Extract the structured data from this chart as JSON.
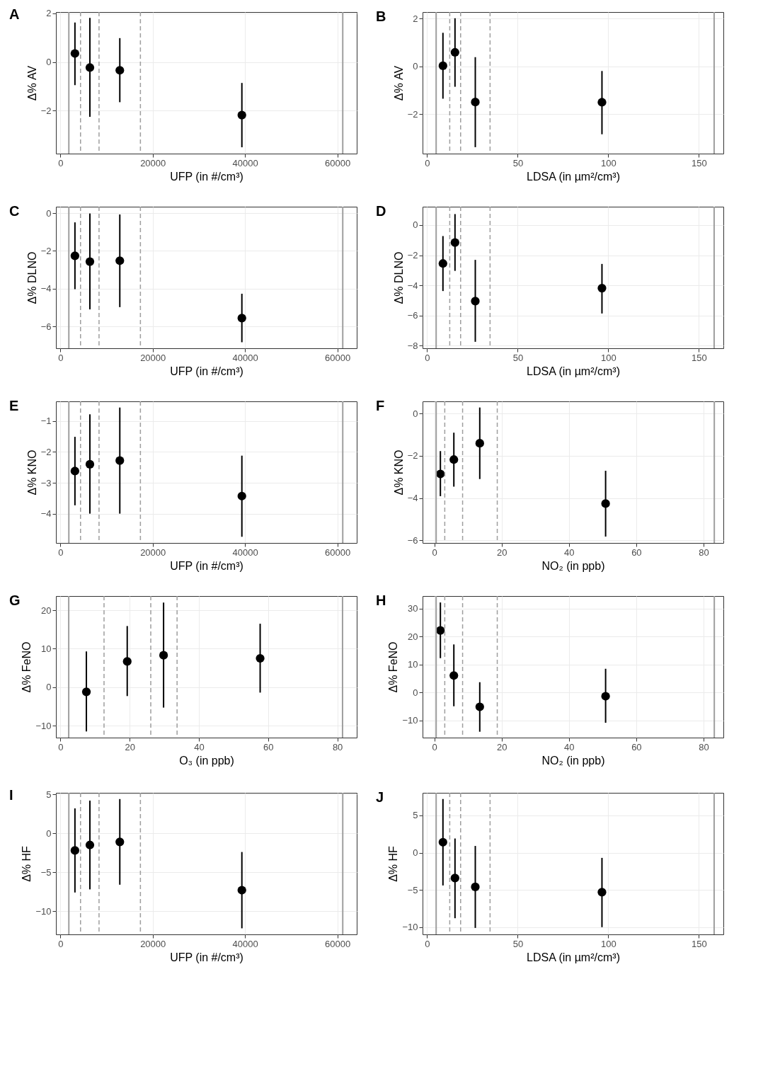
{
  "chart_data": [
    {
      "type": "scatter",
      "title": "A",
      "xlabel": "UFP (in #/cm³)",
      "ylabel": "Δ% AV",
      "x": [
        3160,
        6400,
        12880,
        39320
      ],
      "marker": "circle",
      "grid": true,
      "series": [
        {
          "color": "#000000",
          "values": [
            0.35,
            -0.23,
            -0.34,
            -2.18
          ],
          "errors": [
            [
              -0.95,
              1.62
            ],
            [
              -2.25,
              1.81
            ],
            [
              -1.65,
              0.98
            ],
            [
              -3.5,
              -0.86
            ]
          ]
        }
      ],
      "xlim": [
        -960,
        64200
      ],
      "xticks": [
        0,
        20000,
        40000,
        60000
      ],
      "ylim": [
        -3.76,
        2.05
      ],
      "yticks": [
        -2,
        0,
        2
      ],
      "ref_lines": [
        {
          "axis": "x",
          "value": 1840,
          "color": "#9e9e9e",
          "line_style": "solid"
        },
        {
          "axis": "x",
          "value": 4370,
          "color": "#9e9e9e",
          "line_style": "dashed"
        },
        {
          "axis": "x",
          "value": 8380,
          "color": "#9e9e9e",
          "line_style": "dashed"
        },
        {
          "axis": "x",
          "value": 17340,
          "color": "#9e9e9e",
          "line_style": "dashed"
        },
        {
          "axis": "x",
          "value": 61170,
          "color": "#9e9e9e",
          "line_style": "solid"
        }
      ]
    },
    {
      "type": "scatter",
      "title": "B",
      "xlabel": "LDSA (in µm²/cm³)",
      "ylabel": "Δ% AV",
      "x": [
        8.75,
        15.4,
        26.6,
        96.5
      ],
      "marker": "circle",
      "grid": true,
      "series": [
        {
          "color": "#000000",
          "values": [
            0.02,
            0.58,
            -1.5,
            -1.51
          ],
          "errors": [
            [
              -1.36,
              1.4
            ],
            [
              -0.86,
              2.01
            ],
            [
              -3.39,
              0.38
            ],
            [
              -2.85,
              -0.2
            ]
          ]
        }
      ],
      "xlim": [
        -2.5,
        163.5
      ],
      "xticks": [
        0,
        50,
        100,
        150
      ],
      "ylim": [
        -3.66,
        2.27
      ],
      "yticks": [
        -2,
        0,
        2
      ],
      "ref_lines": [
        {
          "axis": "x",
          "value": 5,
          "color": "#9e9e9e",
          "line_style": "solid"
        },
        {
          "axis": "x",
          "value": 12.5,
          "color": "#9e9e9e",
          "line_style": "dashed"
        },
        {
          "axis": "x",
          "value": 18.5,
          "color": "#9e9e9e",
          "line_style": "dashed"
        },
        {
          "axis": "x",
          "value": 34.75,
          "color": "#9e9e9e",
          "line_style": "dashed"
        },
        {
          "axis": "x",
          "value": 158.4,
          "color": "#9e9e9e",
          "line_style": "solid"
        }
      ]
    },
    {
      "type": "scatter",
      "title": "C",
      "xlabel": "UFP (in #/cm³)",
      "ylabel": "Δ% DLNO",
      "x": [
        3160,
        6400,
        12880,
        39320
      ],
      "marker": "circle",
      "grid": true,
      "series": [
        {
          "color": "#000000",
          "values": [
            -2.26,
            -2.57,
            -2.52,
            -5.56
          ],
          "errors": [
            [
              -4.03,
              -0.49
            ],
            [
              -5.1,
              -0.02
            ],
            [
              -4.98,
              -0.07
            ],
            [
              -6.84,
              -4.27
            ]
          ]
        }
      ],
      "xlim": [
        -960,
        64200
      ],
      "xticks": [
        0,
        20000,
        40000,
        60000
      ],
      "ylim": [
        -7.16,
        0.34
      ],
      "yticks": [
        -6,
        -4,
        -2,
        0
      ],
      "ref_lines": [
        {
          "axis": "x",
          "value": 1840,
          "color": "#9e9e9e",
          "line_style": "solid"
        },
        {
          "axis": "x",
          "value": 4370,
          "color": "#9e9e9e",
          "line_style": "dashed"
        },
        {
          "axis": "x",
          "value": 8380,
          "color": "#9e9e9e",
          "line_style": "dashed"
        },
        {
          "axis": "x",
          "value": 17340,
          "color": "#9e9e9e",
          "line_style": "dashed"
        },
        {
          "axis": "x",
          "value": 61170,
          "color": "#9e9e9e",
          "line_style": "solid"
        }
      ]
    },
    {
      "type": "scatter",
      "title": "D",
      "xlabel": "LDSA (in µm²/cm³)",
      "ylabel": "Δ% DLNO",
      "x": [
        8.75,
        15.4,
        26.6,
        96.5
      ],
      "marker": "circle",
      "grid": true,
      "series": [
        {
          "color": "#000000",
          "values": [
            -2.55,
            -1.16,
            -5.05,
            -4.19
          ],
          "errors": [
            [
              -4.38,
              -0.73
            ],
            [
              -3.04,
              0.73
            ],
            [
              -7.75,
              -2.31
            ],
            [
              -5.87,
              -2.58
            ]
          ]
        }
      ],
      "xlim": [
        -2.5,
        163.5
      ],
      "xticks": [
        0,
        50,
        100,
        150
      ],
      "ylim": [
        -8.18,
        1.22
      ],
      "yticks": [
        -8,
        -6,
        -4,
        -2,
        0
      ],
      "ref_lines": [
        {
          "axis": "x",
          "value": 5,
          "color": "#9e9e9e",
          "line_style": "solid"
        },
        {
          "axis": "x",
          "value": 12.5,
          "color": "#9e9e9e",
          "line_style": "dashed"
        },
        {
          "axis": "x",
          "value": 18.5,
          "color": "#9e9e9e",
          "line_style": "dashed"
        },
        {
          "axis": "x",
          "value": 34.75,
          "color": "#9e9e9e",
          "line_style": "dashed"
        },
        {
          "axis": "x",
          "value": 158.4,
          "color": "#9e9e9e",
          "line_style": "solid"
        }
      ]
    },
    {
      "type": "scatter",
      "title": "E",
      "xlabel": "UFP (in #/cm³)",
      "ylabel": "Δ% KNO",
      "x": [
        3160,
        6400,
        12880,
        39320
      ],
      "marker": "circle",
      "grid": true,
      "series": [
        {
          "color": "#000000",
          "values": [
            -2.62,
            -2.4,
            -2.28,
            -3.43
          ],
          "errors": [
            [
              -3.73,
              -1.51
            ],
            [
              -4.0,
              -0.78
            ],
            [
              -4.0,
              -0.56
            ],
            [
              -4.75,
              -2.12
            ]
          ]
        }
      ],
      "xlim": [
        -960,
        64200
      ],
      "xticks": [
        0,
        20000,
        40000,
        60000
      ],
      "ylim": [
        -4.95,
        -0.36
      ],
      "yticks": [
        -4,
        -3,
        -2,
        -1
      ],
      "ref_lines": [
        {
          "axis": "x",
          "value": 1840,
          "color": "#9e9e9e",
          "line_style": "solid"
        },
        {
          "axis": "x",
          "value": 4370,
          "color": "#9e9e9e",
          "line_style": "dashed"
        },
        {
          "axis": "x",
          "value": 8380,
          "color": "#9e9e9e",
          "line_style": "dashed"
        },
        {
          "axis": "x",
          "value": 17340,
          "color": "#9e9e9e",
          "line_style": "dashed"
        },
        {
          "axis": "x",
          "value": 61170,
          "color": "#9e9e9e",
          "line_style": "solid"
        }
      ]
    },
    {
      "type": "scatter",
      "title": "F",
      "xlabel": "NO₂ (in ppb)",
      "ylabel": "Δ% KNO",
      "x": [
        1.8,
        5.8,
        13.5,
        50.9
      ],
      "marker": "circle",
      "grid": true,
      "series": [
        {
          "color": "#000000",
          "values": [
            -2.86,
            -2.18,
            -1.41,
            -4.26
          ],
          "errors": [
            [
              -3.91,
              -1.78
            ],
            [
              -3.46,
              -0.91
            ],
            [
              -3.1,
              0.28
            ],
            [
              -5.82,
              -2.71
            ]
          ]
        }
      ],
      "xlim": [
        -3.5,
        85.9
      ],
      "xticks": [
        0,
        20,
        40,
        60,
        80
      ],
      "ylim": [
        -6.12,
        0.57
      ],
      "yticks": [
        -6,
        -4,
        -2,
        0
      ],
      "ref_lines": [
        {
          "axis": "x",
          "value": 0.54,
          "color": "#9e9e9e",
          "line_style": "solid"
        },
        {
          "axis": "x",
          "value": 3.1,
          "color": "#9e9e9e",
          "line_style": "dashed"
        },
        {
          "axis": "x",
          "value": 8.4,
          "color": "#9e9e9e",
          "line_style": "dashed"
        },
        {
          "axis": "x",
          "value": 18.7,
          "color": "#9e9e9e",
          "line_style": "dashed"
        },
        {
          "axis": "x",
          "value": 83.2,
          "color": "#9e9e9e",
          "line_style": "solid"
        }
      ]
    },
    {
      "type": "scatter",
      "title": "G",
      "xlabel": "O₃ (in ppb)",
      "ylabel": "Δ% FeNO",
      "x": [
        7.5,
        19.3,
        29.8,
        57.7
      ],
      "marker": "circle",
      "grid": true,
      "series": [
        {
          "color": "#000000",
          "values": [
            -1.2,
            6.7,
            8.3,
            7.5
          ],
          "errors": [
            [
              -11.5,
              9.3
            ],
            [
              -2.3,
              15.9
            ],
            [
              -5.3,
              22.0
            ],
            [
              -1.4,
              16.5
            ]
          ]
        }
      ],
      "xlim": [
        -1.3,
        85.6
      ],
      "xticks": [
        0,
        20,
        40,
        60,
        80
      ],
      "ylim": [
        -13.1,
        23.7
      ],
      "yticks": [
        -10,
        0,
        10,
        20
      ],
      "ref_lines": [
        {
          "axis": "x",
          "value": 2.4,
          "color": "#9e9e9e",
          "line_style": "solid"
        },
        {
          "axis": "x",
          "value": 12.6,
          "color": "#9e9e9e",
          "line_style": "dashed"
        },
        {
          "axis": "x",
          "value": 26.1,
          "color": "#9e9e9e",
          "line_style": "dashed"
        },
        {
          "axis": "x",
          "value": 33.7,
          "color": "#9e9e9e",
          "line_style": "dashed"
        },
        {
          "axis": "x",
          "value": 81.5,
          "color": "#9e9e9e",
          "line_style": "solid"
        }
      ]
    },
    {
      "type": "scatter",
      "title": "H",
      "xlabel": "NO₂ (in ppb)",
      "ylabel": "Δ% FeNO",
      "x": [
        1.8,
        5.8,
        13.5,
        50.9
      ],
      "marker": "circle",
      "grid": true,
      "series": [
        {
          "color": "#000000",
          "values": [
            22.2,
            6.1,
            -5.1,
            -1.3
          ],
          "errors": [
            [
              12.3,
              32.2
            ],
            [
              -4.9,
              17.2
            ],
            [
              -14.0,
              3.7
            ],
            [
              -10.8,
              8.5
            ]
          ]
        }
      ],
      "xlim": [
        -3.5,
        85.9
      ],
      "xticks": [
        0,
        20,
        40,
        60,
        80
      ],
      "ylim": [
        -16.1,
        34.5
      ],
      "yticks": [
        -10,
        0,
        10,
        20,
        30
      ],
      "ref_lines": [
        {
          "axis": "x",
          "value": 0.54,
          "color": "#9e9e9e",
          "line_style": "solid"
        },
        {
          "axis": "x",
          "value": 3.1,
          "color": "#9e9e9e",
          "line_style": "dashed"
        },
        {
          "axis": "x",
          "value": 8.4,
          "color": "#9e9e9e",
          "line_style": "dashed"
        },
        {
          "axis": "x",
          "value": 18.7,
          "color": "#9e9e9e",
          "line_style": "dashed"
        },
        {
          "axis": "x",
          "value": 83.2,
          "color": "#9e9e9e",
          "line_style": "solid"
        }
      ]
    },
    {
      "type": "scatter",
      "title": "I",
      "xlabel": "UFP (in #/cm³)",
      "ylabel": "Δ% HF",
      "x": [
        3160,
        6400,
        12880,
        39320
      ],
      "marker": "circle",
      "grid": true,
      "series": [
        {
          "color": "#000000",
          "values": [
            -2.2,
            -1.5,
            -1.1,
            -7.3
          ],
          "errors": [
            [
              -7.6,
              3.2
            ],
            [
              -7.2,
              4.2
            ],
            [
              -6.6,
              4.4
            ],
            [
              -12.2,
              -2.4
            ]
          ]
        }
      ],
      "xlim": [
        -960,
        64200
      ],
      "xticks": [
        0,
        20000,
        40000,
        60000
      ],
      "ylim": [
        -12.98,
        5.2
      ],
      "yticks": [
        -10,
        -5,
        0,
        5
      ],
      "ref_lines": [
        {
          "axis": "x",
          "value": 1840,
          "color": "#9e9e9e",
          "line_style": "solid"
        },
        {
          "axis": "x",
          "value": 4370,
          "color": "#9e9e9e",
          "line_style": "dashed"
        },
        {
          "axis": "x",
          "value": 8380,
          "color": "#9e9e9e",
          "line_style": "dashed"
        },
        {
          "axis": "x",
          "value": 17340,
          "color": "#9e9e9e",
          "line_style": "dashed"
        },
        {
          "axis": "x",
          "value": 61170,
          "color": "#9e9e9e",
          "line_style": "solid"
        }
      ]
    },
    {
      "type": "scatter",
      "title": "J",
      "xlabel": "LDSA (in µm²/cm³)",
      "ylabel": "Δ% HF",
      "x": [
        8.75,
        15.4,
        26.6,
        96.5
      ],
      "marker": "circle",
      "grid": true,
      "series": [
        {
          "color": "#000000",
          "values": [
            1.4,
            -3.4,
            -4.6,
            -5.3
          ],
          "errors": [
            [
              -4.4,
              7.2
            ],
            [
              -8.8,
              1.9
            ],
            [
              -10.1,
              0.9
            ],
            [
              -10.0,
              -0.7
            ]
          ]
        }
      ],
      "xlim": [
        -2.5,
        163.5
      ],
      "xticks": [
        0,
        50,
        100,
        150
      ],
      "ylim": [
        -10.97,
        8.03
      ],
      "yticks": [
        -10,
        -5,
        0,
        5
      ],
      "ref_lines": [
        {
          "axis": "x",
          "value": 5,
          "color": "#9e9e9e",
          "line_style": "solid"
        },
        {
          "axis": "x",
          "value": 12.5,
          "color": "#9e9e9e",
          "line_style": "dashed"
        },
        {
          "axis": "x",
          "value": 18.5,
          "color": "#9e9e9e",
          "line_style": "dashed"
        },
        {
          "axis": "x",
          "value": 34.75,
          "color": "#9e9e9e",
          "line_style": "dashed"
        },
        {
          "axis": "x",
          "value": 158.4,
          "color": "#9e9e9e",
          "line_style": "solid"
        }
      ]
    }
  ]
}
